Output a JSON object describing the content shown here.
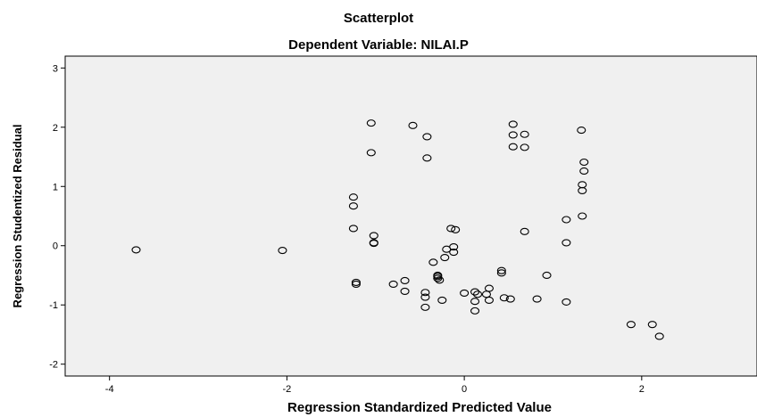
{
  "chart_data": {
    "type": "scatter",
    "title": "Scatterplot",
    "subtitle": "Dependent Variable: NILAI.P",
    "xlabel": "Regression Standardized Predicted Value",
    "ylabel": "Regression Studentized Residual",
    "xlim": [
      -4.5,
      3.3
    ],
    "ylim": [
      -2.2,
      3.2
    ],
    "xticks": [
      "-4",
      "-2",
      "0",
      "2"
    ],
    "yticks": [
      "3",
      "2",
      "1",
      "0",
      "-1",
      "-2"
    ],
    "colors": {
      "plot_background": "#f0f0f0",
      "marker_stroke": "#000000",
      "frame": "#000000"
    },
    "marker": "open-circle",
    "points": [
      [
        -3.7,
        -0.07
      ],
      [
        -2.05,
        -0.08
      ],
      [
        -1.25,
        0.82
      ],
      [
        -1.25,
        0.67
      ],
      [
        -1.25,
        0.29
      ],
      [
        -1.22,
        -0.62
      ],
      [
        -1.22,
        -0.65
      ],
      [
        -1.05,
        2.07
      ],
      [
        -1.05,
        1.57
      ],
      [
        -1.02,
        0.17
      ],
      [
        -1.02,
        0.05
      ],
      [
        -1.02,
        0.04
      ],
      [
        -0.8,
        -0.65
      ],
      [
        -0.67,
        -0.59
      ],
      [
        -0.67,
        -0.77
      ],
      [
        -0.58,
        2.03
      ],
      [
        -0.42,
        1.84
      ],
      [
        -0.42,
        1.48
      ],
      [
        -0.35,
        -0.28
      ],
      [
        -0.44,
        -0.79
      ],
      [
        -0.44,
        -0.87
      ],
      [
        -0.44,
        -1.04
      ],
      [
        -0.3,
        -0.5
      ],
      [
        -0.3,
        -0.52
      ],
      [
        -0.3,
        -0.55
      ],
      [
        -0.28,
        -0.58
      ],
      [
        -0.2,
        -0.06
      ],
      [
        -0.22,
        -0.2
      ],
      [
        -0.25,
        -0.92
      ],
      [
        -0.15,
        0.29
      ],
      [
        -0.1,
        0.27
      ],
      [
        -0.12,
        -0.02
      ],
      [
        -0.12,
        -0.11
      ],
      [
        0.12,
        -0.78
      ],
      [
        0.15,
        -0.82
      ],
      [
        0.12,
        -0.94
      ],
      [
        0.12,
        -1.1
      ],
      [
        0.0,
        -0.8
      ],
      [
        0.25,
        -0.82
      ],
      [
        0.28,
        -0.72
      ],
      [
        0.28,
        -0.92
      ],
      [
        0.42,
        -0.42
      ],
      [
        0.42,
        -0.46
      ],
      [
        0.45,
        -0.88
      ],
      [
        0.52,
        -0.9
      ],
      [
        0.55,
        2.05
      ],
      [
        0.55,
        1.87
      ],
      [
        0.55,
        1.67
      ],
      [
        0.68,
        1.88
      ],
      [
        0.68,
        1.66
      ],
      [
        0.68,
        0.24
      ],
      [
        0.82,
        -0.9
      ],
      [
        0.93,
        -0.5
      ],
      [
        1.15,
        0.44
      ],
      [
        1.15,
        0.05
      ],
      [
        1.15,
        -0.95
      ],
      [
        1.32,
        1.95
      ],
      [
        1.35,
        1.41
      ],
      [
        1.35,
        1.26
      ],
      [
        1.33,
        1.03
      ],
      [
        1.33,
        0.93
      ],
      [
        1.33,
        0.5
      ],
      [
        1.88,
        -1.33
      ],
      [
        2.12,
        -1.33
      ],
      [
        2.2,
        -1.53
      ]
    ]
  }
}
